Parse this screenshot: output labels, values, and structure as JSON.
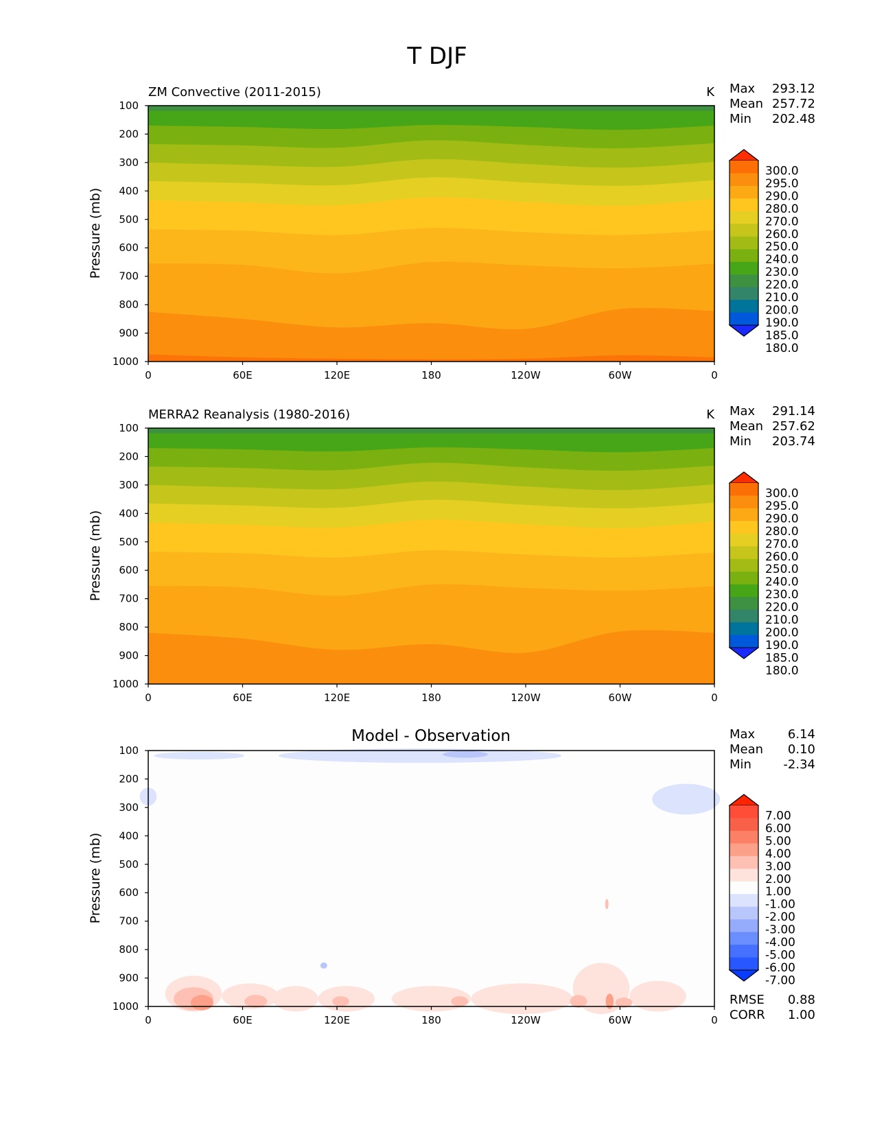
{
  "figure_title": "T DJF",
  "colormaps": {
    "main": [
      "#1a2aff",
      "#0058db",
      "#00749a",
      "#33856a",
      "#3d9140",
      "#46a617",
      "#7ab110",
      "#a2bc15",
      "#c6c51c",
      "#e5cf23",
      "#fec61f",
      "#fda915",
      "#fb8e0c",
      "#fc6f06",
      "#ff2e00"
    ],
    "diff": [
      "#0a3cff",
      "#2856ff",
      "#4670ff",
      "#6b8eff",
      "#95abfb",
      "#b8c6fb",
      "#dbe3fd",
      "#fdfdfd",
      "#fde3dc",
      "#fdc0b2",
      "#fca08a",
      "#fc8066",
      "#f9604a",
      "#ff4d38",
      "#ff2400"
    ]
  },
  "chart_data": [
    {
      "type": "contour",
      "title": "ZM Convective (2011-2015)",
      "units": "K",
      "ylabel": "Pressure (mb)",
      "xlabel": "",
      "xticks": [
        "0",
        "60E",
        "120E",
        "180",
        "120W",
        "60W",
        "0"
      ],
      "yticks": [
        "100",
        "200",
        "300",
        "400",
        "500",
        "600",
        "700",
        "800",
        "900",
        "1000"
      ],
      "ylim": [
        1000,
        100
      ],
      "xlim": [
        0,
        360
      ],
      "stats": [
        {
          "label": "Max",
          "value": "293.12"
        },
        {
          "label": "Mean",
          "value": "257.72"
        },
        {
          "label": "Min",
          "value": "202.48"
        }
      ],
      "colorbar_levels": [
        "300.0",
        "295.0",
        "290.0",
        "280.0",
        "270.0",
        "260.0",
        "250.0",
        "240.0",
        "230.0",
        "220.0",
        "210.0",
        "200.0",
        "190.0",
        "185.0",
        "180.0"
      ],
      "contour_boundaries_approx_mb": [
        {
          "level": 210,
          "p": [
            118,
            118,
            118,
            118,
            118,
            118,
            118
          ]
        },
        {
          "level": 220,
          "p": [
            170,
            175,
            182,
            168,
            175,
            185,
            170
          ]
        },
        {
          "level": 230,
          "p": [
            235,
            240,
            248,
            222,
            238,
            250,
            232
          ]
        },
        {
          "level": 240,
          "p": [
            300,
            308,
            315,
            288,
            305,
            318,
            298
          ]
        },
        {
          "level": 250,
          "p": [
            365,
            372,
            380,
            352,
            370,
            382,
            362
          ]
        },
        {
          "level": 260,
          "p": [
            432,
            440,
            450,
            422,
            438,
            452,
            428
          ]
        },
        {
          "level": 270,
          "p": [
            535,
            540,
            555,
            530,
            545,
            555,
            538
          ]
        },
        {
          "level": 280,
          "p": [
            655,
            660,
            690,
            650,
            662,
            672,
            656
          ]
        },
        {
          "level": 290,
          "p": [
            825,
            850,
            880,
            865,
            885,
            815,
            822
          ]
        },
        {
          "level": 295,
          "p": [
            975,
            985,
            990,
            992,
            990,
            978,
            985
          ]
        }
      ]
    },
    {
      "type": "contour",
      "title": "MERRA2 Reanalysis (1980-2016)",
      "units": "K",
      "ylabel": "Pressure (mb)",
      "xlabel": "",
      "xticks": [
        "0",
        "60E",
        "120E",
        "180",
        "120W",
        "60W",
        "0"
      ],
      "yticks": [
        "100",
        "200",
        "300",
        "400",
        "500",
        "600",
        "700",
        "800",
        "900",
        "1000"
      ],
      "ylim": [
        1000,
        100
      ],
      "xlim": [
        0,
        360
      ],
      "stats": [
        {
          "label": "Max",
          "value": "291.14"
        },
        {
          "label": "Mean",
          "value": "257.62"
        },
        {
          "label": "Min",
          "value": "203.74"
        }
      ],
      "colorbar_levels": [
        "300.0",
        "295.0",
        "290.0",
        "280.0",
        "270.0",
        "260.0",
        "250.0",
        "240.0",
        "230.0",
        "220.0",
        "210.0",
        "200.0",
        "190.0",
        "185.0",
        "180.0"
      ],
      "contour_boundaries_approx_mb": [
        {
          "level": 210,
          "p": [
            118,
            118,
            118,
            118,
            118,
            118,
            118
          ]
        },
        {
          "level": 220,
          "p": [
            170,
            175,
            182,
            168,
            175,
            185,
            170
          ]
        },
        {
          "level": 230,
          "p": [
            235,
            240,
            248,
            222,
            238,
            250,
            232
          ]
        },
        {
          "level": 240,
          "p": [
            300,
            308,
            315,
            288,
            305,
            318,
            298
          ]
        },
        {
          "level": 250,
          "p": [
            365,
            372,
            380,
            352,
            370,
            382,
            362
          ]
        },
        {
          "level": 260,
          "p": [
            432,
            440,
            450,
            422,
            438,
            452,
            428
          ]
        },
        {
          "level": 270,
          "p": [
            535,
            540,
            555,
            530,
            545,
            555,
            538
          ]
        },
        {
          "level": 280,
          "p": [
            655,
            660,
            690,
            650,
            662,
            672,
            656
          ]
        },
        {
          "level": 290,
          "p": [
            820,
            840,
            880,
            860,
            890,
            815,
            820
          ]
        }
      ]
    },
    {
      "type": "contour",
      "title": "Model - Observation",
      "units": "",
      "ylabel": "Pressure (mb)",
      "xlabel": "",
      "xticks": [
        "0",
        "60E",
        "120E",
        "180",
        "120W",
        "60W",
        "0"
      ],
      "yticks": [
        "100",
        "200",
        "300",
        "400",
        "500",
        "600",
        "700",
        "800",
        "900",
        "1000"
      ],
      "ylim": [
        1000,
        100
      ],
      "xlim": [
        0,
        360
      ],
      "stats": [
        {
          "label": "Max",
          "value": "6.14"
        },
        {
          "label": "Mean",
          "value": "0.10"
        },
        {
          "label": "Min",
          "value": "-2.34"
        }
      ],
      "metrics": [
        {
          "label": "RMSE",
          "value": "0.88"
        },
        {
          "label": "CORR",
          "value": "1.00"
        }
      ],
      "colorbar_levels": [
        "7.00",
        "6.00",
        "5.00",
        "4.00",
        "3.00",
        "2.00",
        "1.00",
        "-1.00",
        "-2.00",
        "-3.00",
        "-4.00",
        "-5.00",
        "-6.00",
        "-7.00"
      ]
    }
  ]
}
